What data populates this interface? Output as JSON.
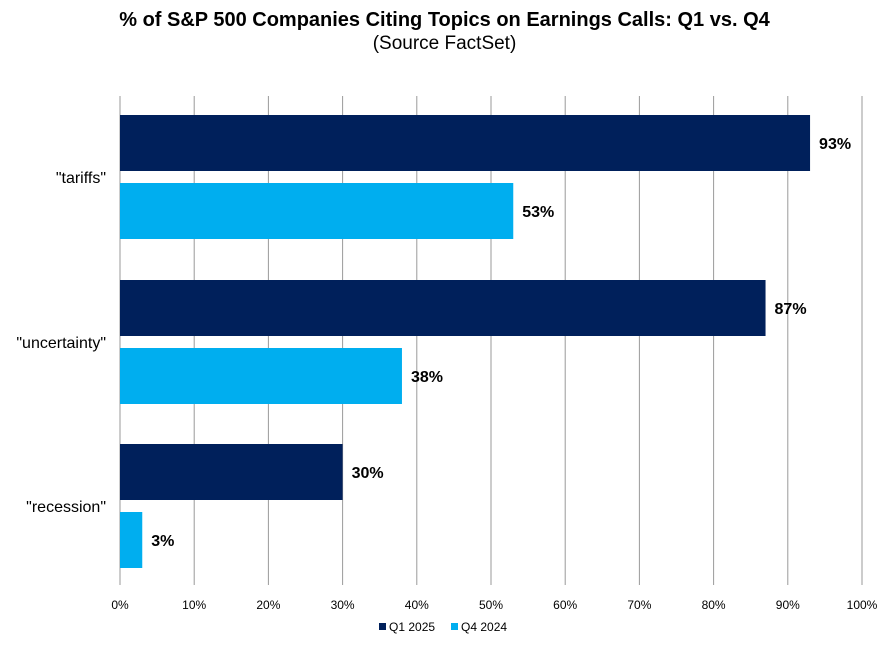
{
  "chart_data": {
    "type": "bar",
    "orientation": "horizontal",
    "title": "% of S&P 500 Companies Citing Topics on Earnings Calls: Q1 vs. Q4",
    "subtitle": "(Source FactSet)",
    "categories": [
      "\"tariffs\"",
      "\"uncertainty\"",
      "\"recession\""
    ],
    "series": [
      {
        "name": "Q1 2025",
        "color": "#00205b",
        "values": [
          93,
          87,
          30
        ]
      },
      {
        "name": "Q4 2024",
        "color": "#00aeef",
        "values": [
          53,
          38,
          3
        ]
      }
    ],
    "data_labels": [
      [
        "93%",
        "87%",
        "30%"
      ],
      [
        "53%",
        "38%",
        "3%"
      ]
    ],
    "xlim": [
      0,
      100
    ],
    "xticks": [
      0,
      10,
      20,
      30,
      40,
      50,
      60,
      70,
      80,
      90,
      100
    ],
    "xtick_labels": [
      "0%",
      "10%",
      "20%",
      "30%",
      "40%",
      "50%",
      "60%",
      "70%",
      "80%",
      "90%",
      "100%"
    ],
    "xlabel": "",
    "ylabel": "",
    "grid": "vertical",
    "legend": "bottom-center"
  }
}
